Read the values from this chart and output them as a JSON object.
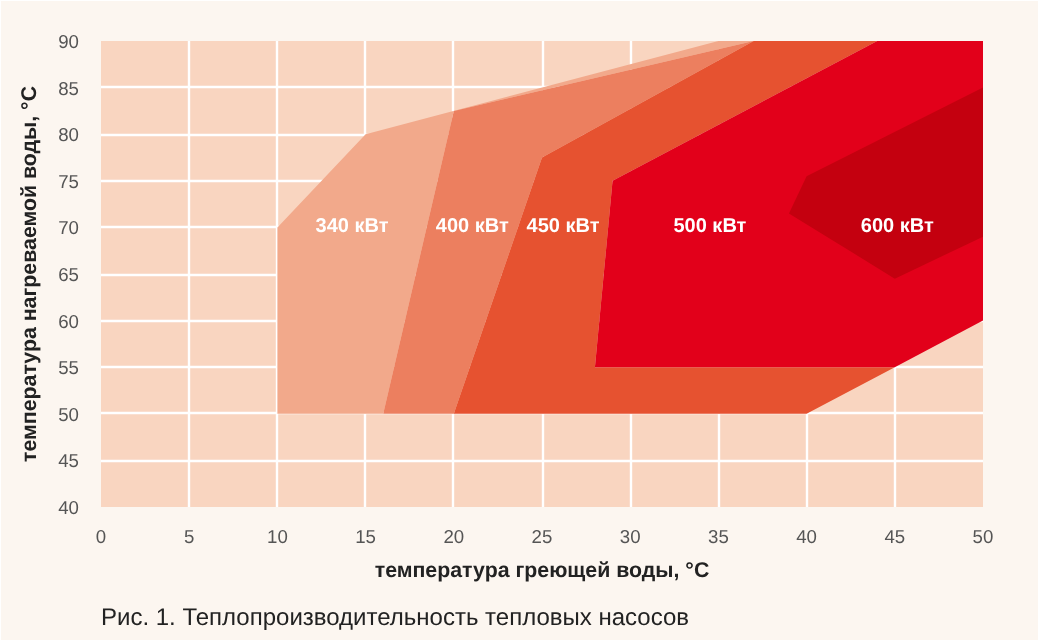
{
  "chart_data": {
    "type": "area",
    "title": "Рис. 1. Теплопроизводительность тепловых насосов",
    "xlabel": "температура греющей воды, °С",
    "ylabel": "температура нагреваемой воды, °С",
    "xlim": [
      0,
      50
    ],
    "ylim": [
      40,
      90
    ],
    "xticks": [
      0,
      5,
      10,
      15,
      20,
      25,
      30,
      35,
      40,
      45,
      50
    ],
    "yticks": [
      40,
      45,
      50,
      55,
      60,
      65,
      70,
      75,
      80,
      85,
      90
    ],
    "grid": true,
    "series": [
      {
        "name": "340 кВт",
        "color": "#f2a98b",
        "x": [
          10,
          10,
          15,
          35,
          37,
          20,
          16
        ],
        "values": [
          50,
          70,
          80,
          90,
          90,
          82.5,
          50
        ]
      },
      {
        "name": "400 кВт",
        "color": "#ec7f5f",
        "x": [
          16,
          20,
          37,
          25,
          20
        ],
        "values": [
          50,
          82.5,
          90,
          77.5,
          50
        ]
      },
      {
        "name": "450 кВт",
        "color": "#e65230",
        "x": [
          20,
          25,
          37,
          44,
          29,
          28,
          45,
          40
        ],
        "values": [
          50,
          77.5,
          90,
          90,
          75,
          55,
          55,
          50
        ]
      },
      {
        "name": "500 кВт",
        "color": "#e2001a",
        "x": [
          28,
          29,
          44,
          50,
          50,
          45
        ],
        "values": [
          55,
          75,
          90,
          90,
          60,
          55
        ]
      },
      {
        "name": "600 кВт",
        "color": "#c4000f",
        "x": [
          39,
          40,
          50,
          50,
          45
        ],
        "values": [
          71.5,
          75.5,
          85,
          69,
          64.5
        ]
      }
    ]
  }
}
